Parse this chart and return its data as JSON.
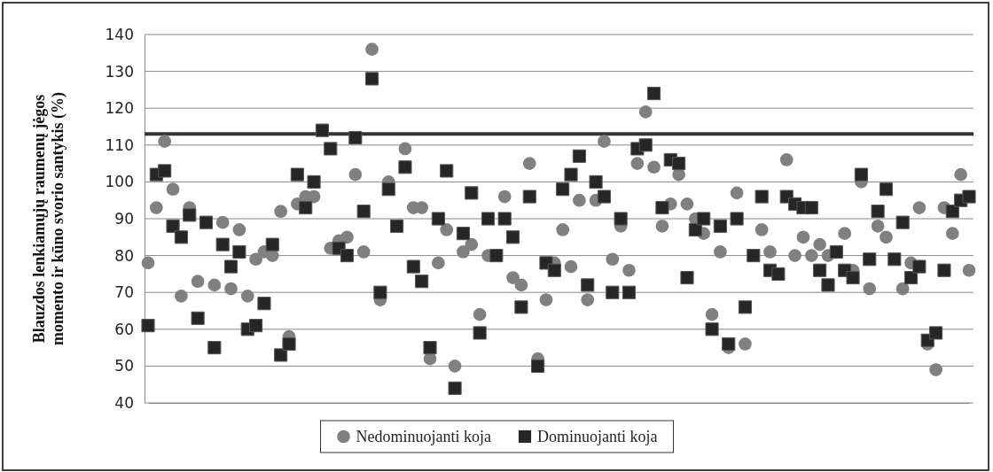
{
  "chart_data": {
    "type": "scatter",
    "ylabel": "Blauzdos lenkiamųjų raumenų jėgos momento ir kūno svorio santykis (%)",
    "categories": [
      null,
      null,
      null,
      null,
      null,
      null,
      null,
      null,
      null,
      null,
      null,
      null,
      null,
      null,
      null,
      null,
      null,
      null,
      null,
      null,
      null,
      null,
      null,
      null,
      null,
      null,
      null,
      null,
      null,
      null,
      null,
      null,
      null,
      null,
      null,
      null,
      null,
      null,
      null,
      null,
      null,
      null,
      null,
      null,
      null,
      null,
      null,
      null,
      null,
      null,
      null,
      null,
      null,
      null,
      null,
      null,
      null,
      null,
      null,
      null,
      null,
      null,
      null,
      null,
      null,
      null,
      null,
      null,
      null,
      null,
      null,
      null,
      null,
      null,
      null,
      null,
      null,
      null,
      null,
      null,
      null,
      null,
      null,
      null,
      null,
      null,
      null,
      null,
      null,
      null,
      null,
      null,
      null,
      null,
      null,
      null,
      null,
      null,
      null,
      null
    ],
    "series": [
      {
        "name": "Nedominuojanti koja",
        "color": "#808080",
        "marker": "circle",
        "values": [
          78,
          93,
          111,
          98,
          69,
          93,
          73,
          null,
          72,
          89,
          71,
          87,
          69,
          79,
          81,
          80,
          92,
          58,
          94,
          96,
          96,
          null,
          82,
          84,
          85,
          102,
          81,
          136,
          68,
          100,
          null,
          109,
          93,
          93,
          52,
          78,
          87,
          50,
          81,
          83,
          64,
          80,
          null,
          96,
          74,
          72,
          105,
          52,
          68,
          78,
          87,
          77,
          95,
          68,
          95,
          111,
          79,
          88,
          76,
          105,
          119,
          104,
          88,
          94,
          102,
          94,
          90,
          86,
          64,
          81,
          55,
          97,
          56,
          null,
          87,
          81,
          null,
          106,
          80,
          85,
          80,
          83,
          80,
          null,
          86,
          76,
          100,
          71,
          88,
          85,
          null,
          71,
          78,
          93,
          56,
          49,
          93,
          86,
          102,
          76
        ]
      },
      {
        "name": "Dominuojanti koja",
        "color": "#262626",
        "marker": "square",
        "values": [
          61,
          102,
          103,
          88,
          85,
          91,
          63,
          89,
          55,
          83,
          77,
          81,
          60,
          61,
          67,
          83,
          53,
          56,
          102,
          93,
          100,
          114,
          109,
          82,
          80,
          112,
          92,
          128,
          70,
          98,
          88,
          104,
          77,
          73,
          55,
          90,
          103,
          44,
          86,
          97,
          59,
          90,
          80,
          90,
          85,
          66,
          96,
          50,
          78,
          76,
          98,
          102,
          107,
          72,
          100,
          96,
          70,
          90,
          70,
          109,
          110,
          124,
          93,
          106,
          105,
          74,
          87,
          90,
          60,
          88,
          56,
          90,
          66,
          80,
          96,
          76,
          75,
          96,
          94,
          93,
          93,
          76,
          72,
          81,
          76,
          74,
          102,
          79,
          92,
          98,
          79,
          89,
          74,
          77,
          57,
          59,
          76,
          92,
          95,
          96
        ]
      }
    ],
    "ylim": [
      40,
      140
    ],
    "yticks": [
      40,
      50,
      60,
      70,
      80,
      90,
      100,
      110,
      120,
      130,
      140
    ],
    "grid": "y",
    "tick_labels": "y",
    "legend": "bottom",
    "ref_lines": [
      {
        "axis": "y",
        "value": 113,
        "color": "#333333"
      }
    ]
  }
}
